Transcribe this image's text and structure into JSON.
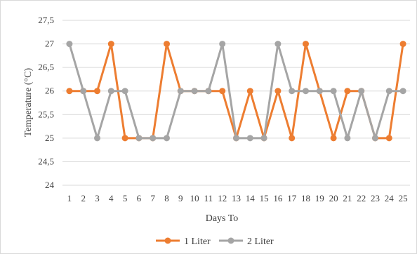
{
  "chart_data": {
    "type": "line",
    "title": "",
    "xlabel": "Days To",
    "ylabel": "Temperature (°C)",
    "ylim": [
      24,
      27.5
    ],
    "yticks": [
      "24",
      "24,5",
      "25",
      "25,5",
      "26",
      "26,5",
      "27",
      "27,5"
    ],
    "categories": [
      "1",
      "2",
      "3",
      "4",
      "5",
      "6",
      "7",
      "8",
      "9",
      "10",
      "11",
      "12",
      "13",
      "14",
      "15",
      "16",
      "17",
      "18",
      "19",
      "20",
      "21",
      "22",
      "23",
      "24",
      "25"
    ],
    "grid": "horizontal",
    "legend_position": "bottom",
    "series": [
      {
        "name": "1 Liter",
        "color": "#ED7D31",
        "values": [
          26,
          26,
          26,
          27,
          25,
          25,
          25,
          27,
          26,
          26,
          26,
          26,
          25,
          26,
          25,
          26,
          25,
          27,
          26,
          25,
          26,
          26,
          25,
          25,
          27
        ]
      },
      {
        "name": "2 Liter",
        "color": "#A5A5A5",
        "values": [
          27,
          26,
          25,
          26,
          26,
          25,
          25,
          25,
          26,
          26,
          26,
          27,
          25,
          25,
          25,
          27,
          26,
          26,
          26,
          26,
          25,
          26,
          25,
          26,
          26
        ]
      }
    ]
  }
}
